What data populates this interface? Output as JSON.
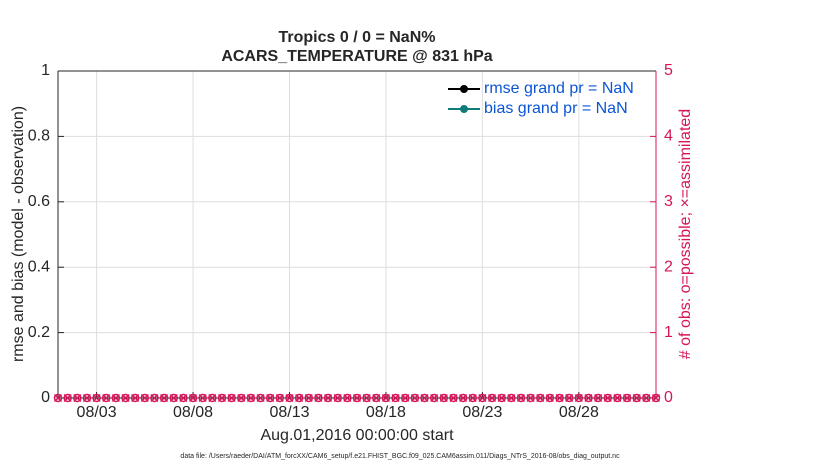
{
  "chart_data": {
    "type": "line",
    "title": "Tropics 0 / 0 = NaN%",
    "subtitle": "ACARS_TEMPERATURE @ 831 hPa",
    "xlabel": "Aug.01,2016 00:00:00 start",
    "ylabel": "rmse and bias (model - observation)",
    "y2label": "# of obs: o=possible; ×=assimilated",
    "footnote": "data file: /Users/raeder/DAI/ATM_forcXX/CAM6_setup/f.e21.FHIST_BGC.f09_025.CAM6assim.011/Diags_NTrS_2016-08/obs_diag_output.nc",
    "grid": true,
    "legend": "top-right",
    "xlim": [
      1,
      32
    ],
    "xticks": [
      {
        "value": 3,
        "label": "08/03"
      },
      {
        "value": 8,
        "label": "08/08"
      },
      {
        "value": 13,
        "label": "08/13"
      },
      {
        "value": 18,
        "label": "08/18"
      },
      {
        "value": 23,
        "label": "08/23"
      },
      {
        "value": 28,
        "label": "08/28"
      }
    ],
    "ylim": [
      0,
      1
    ],
    "yticks": [
      0,
      0.2,
      0.4,
      0.6,
      0.8,
      1
    ],
    "y2lim": [
      0,
      5
    ],
    "y2ticks": [
      0,
      1,
      2,
      3,
      4,
      5
    ],
    "y2color": "#d6145a",
    "x": [
      1,
      1.5,
      2,
      2.5,
      3,
      3.5,
      4,
      4.5,
      5,
      5.5,
      6,
      6.5,
      7,
      7.5,
      8,
      8.5,
      9,
      9.5,
      10,
      10.5,
      11,
      11.5,
      12,
      12.5,
      13,
      13.5,
      14,
      14.5,
      15,
      15.5,
      16,
      16.5,
      17,
      17.5,
      18,
      18.5,
      19,
      19.5,
      20,
      20.5,
      21,
      21.5,
      22,
      22.5,
      23,
      23.5,
      24,
      24.5,
      25,
      25.5,
      26,
      26.5,
      27,
      27.5,
      28,
      28.5,
      29,
      29.5,
      30,
      30.5,
      31,
      31.5,
      32
    ],
    "series": [
      {
        "name": "rmse grand pr = NaN",
        "color": "#000000",
        "marker": "o",
        "values": [
          null,
          null,
          null,
          null,
          null,
          null,
          null,
          null,
          null,
          null,
          null,
          null,
          null,
          null,
          null,
          null,
          null,
          null,
          null,
          null,
          null,
          null,
          null,
          null,
          null,
          null,
          null,
          null,
          null,
          null,
          null,
          null,
          null,
          null,
          null,
          null,
          null,
          null,
          null,
          null,
          null,
          null,
          null,
          null,
          null,
          null,
          null,
          null,
          null,
          null,
          null,
          null,
          null,
          null,
          null,
          null,
          null,
          null,
          null,
          null,
          null,
          null,
          null
        ]
      },
      {
        "name": "bias grand pr = NaN",
        "color": "#0e7c7b",
        "marker": "o",
        "values": [
          null,
          null,
          null,
          null,
          null,
          null,
          null,
          null,
          null,
          null,
          null,
          null,
          null,
          null,
          null,
          null,
          null,
          null,
          null,
          null,
          null,
          null,
          null,
          null,
          null,
          null,
          null,
          null,
          null,
          null,
          null,
          null,
          null,
          null,
          null,
          null,
          null,
          null,
          null,
          null,
          null,
          null,
          null,
          null,
          null,
          null,
          null,
          null,
          null,
          null,
          null,
          null,
          null,
          null,
          null,
          null,
          null,
          null,
          null,
          null,
          null,
          null,
          null
        ]
      },
      {
        "color": "#d6145a",
        "marker": "o",
        "axis": "y2",
        "values": [
          0,
          0,
          0,
          0,
          0,
          0,
          0,
          0,
          0,
          0,
          0,
          0,
          0,
          0,
          0,
          0,
          0,
          0,
          0,
          0,
          0,
          0,
          0,
          0,
          0,
          0,
          0,
          0,
          0,
          0,
          0,
          0,
          0,
          0,
          0,
          0,
          0,
          0,
          0,
          0,
          0,
          0,
          0,
          0,
          0,
          0,
          0,
          0,
          0,
          0,
          0,
          0,
          0,
          0,
          0,
          0,
          0,
          0,
          0,
          0,
          0,
          0,
          0
        ]
      },
      {
        "color": "#d6145a",
        "marker": "x",
        "axis": "y2",
        "values": [
          0,
          0,
          0,
          0,
          0,
          0,
          0,
          0,
          0,
          0,
          0,
          0,
          0,
          0,
          0,
          0,
          0,
          0,
          0,
          0,
          0,
          0,
          0,
          0,
          0,
          0,
          0,
          0,
          0,
          0,
          0,
          0,
          0,
          0,
          0,
          0,
          0,
          0,
          0,
          0,
          0,
          0,
          0,
          0,
          0,
          0,
          0,
          0,
          0,
          0,
          0,
          0,
          0,
          0,
          0,
          0,
          0,
          0,
          0,
          0,
          0,
          0,
          0
        ]
      }
    ]
  }
}
